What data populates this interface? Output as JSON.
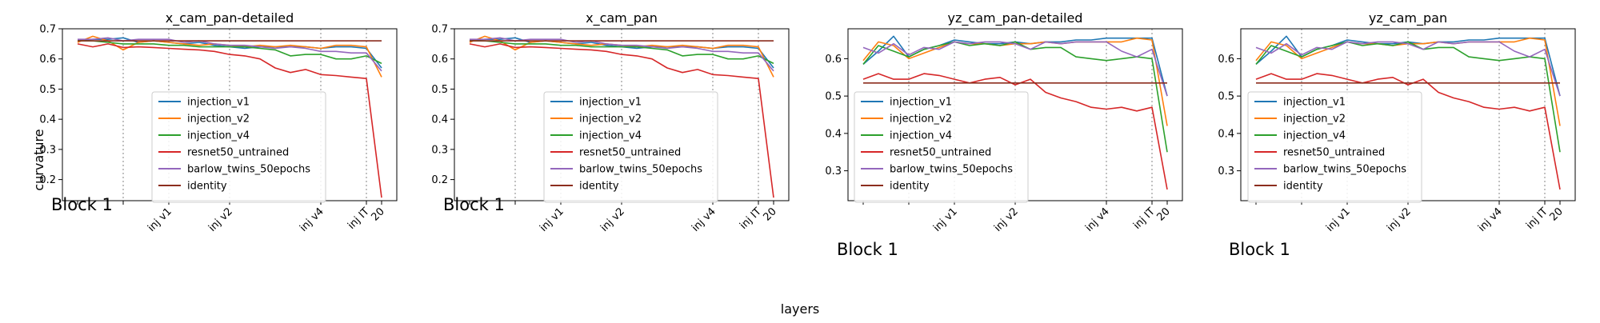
{
  "figure": {
    "xlabel": "layers",
    "ylabel": "curvature",
    "block_label": "Block 1"
  },
  "colors": {
    "injection_v1": "#1f77b4",
    "injection_v2": "#ff7f0e",
    "injection_v4": "#2ca02c",
    "resnet50_untrained": "#d62728",
    "barlow_twins_50epochs": "#9467bd",
    "identity": "#8c2d1e"
  },
  "chart_data": [
    {
      "type": "line",
      "title": "x_cam_pan-detailed",
      "ylim": [
        0.13,
        0.7
      ],
      "yticks": [
        0.2,
        0.3,
        0.4,
        0.5,
        0.6,
        0.7
      ],
      "xlim": [
        -1,
        21
      ],
      "x": [
        0,
        1,
        2,
        3,
        4,
        5,
        6,
        7,
        8,
        9,
        10,
        11,
        12,
        13,
        14,
        15,
        16,
        17,
        18,
        19,
        20
      ],
      "xticks": [
        {
          "x": 0,
          "label": ""
        },
        {
          "x": 3,
          "label": ""
        },
        {
          "x": 6,
          "label": "inj v1"
        },
        {
          "x": 10,
          "label": "inj v2"
        },
        {
          "x": 16,
          "label": "inj v4"
        },
        {
          "x": 19,
          "label": "inj IT"
        },
        {
          "x": 20,
          "label": "20"
        }
      ],
      "vlines": [
        3,
        6,
        10,
        16,
        19
      ],
      "series": [
        {
          "name": "injection_v1",
          "key": "injection_v1",
          "values": [
            0.66,
            0.665,
            0.665,
            0.67,
            0.655,
            0.66,
            0.655,
            0.65,
            0.655,
            0.645,
            0.64,
            0.635,
            0.64,
            0.64,
            0.64,
            0.64,
            0.635,
            0.64,
            0.64,
            0.635,
            0.57
          ]
        },
        {
          "name": "injection_v2",
          "key": "injection_v2",
          "values": [
            0.655,
            0.675,
            0.66,
            0.63,
            0.655,
            0.66,
            0.655,
            0.65,
            0.645,
            0.65,
            0.645,
            0.64,
            0.645,
            0.64,
            0.645,
            0.64,
            0.635,
            0.645,
            0.645,
            0.64,
            0.54
          ]
        },
        {
          "name": "injection_v4",
          "key": "injection_v4",
          "values": [
            0.66,
            0.66,
            0.655,
            0.65,
            0.65,
            0.65,
            0.645,
            0.645,
            0.64,
            0.64,
            0.64,
            0.64,
            0.635,
            0.63,
            0.61,
            0.615,
            0.615,
            0.6,
            0.6,
            0.61,
            0.585
          ]
        },
        {
          "name": "resnet50_untrained",
          "key": "resnet50_untrained",
          "values": [
            0.65,
            0.64,
            0.65,
            0.638,
            0.64,
            0.638,
            0.635,
            0.632,
            0.63,
            0.625,
            0.615,
            0.61,
            0.6,
            0.57,
            0.555,
            0.565,
            0.548,
            0.545,
            0.54,
            0.535,
            0.14
          ]
        },
        {
          "name": "barlow_twins_50epochs",
          "key": "barlow_twins_50epochs",
          "values": [
            0.665,
            0.665,
            0.67,
            0.66,
            0.665,
            0.665,
            0.665,
            0.655,
            0.66,
            0.65,
            0.645,
            0.645,
            0.64,
            0.635,
            0.64,
            0.635,
            0.625,
            0.625,
            0.62,
            0.62,
            0.56
          ]
        },
        {
          "name": "identity",
          "key": "identity",
          "values": [
            0.66,
            0.66,
            0.66,
            0.66,
            0.66,
            0.66,
            0.66,
            0.66,
            0.66,
            0.66,
            0.66,
            0.66,
            0.66,
            0.66,
            0.66,
            0.66,
            0.66,
            0.66,
            0.66,
            0.66,
            0.66
          ]
        }
      ]
    },
    {
      "type": "line",
      "title": "x_cam_pan",
      "ylim": [
        0.13,
        0.7
      ],
      "yticks": [
        0.2,
        0.3,
        0.4,
        0.5,
        0.6,
        0.7
      ],
      "xlim": [
        -1,
        21
      ],
      "x": [
        0,
        1,
        2,
        3,
        4,
        5,
        6,
        7,
        8,
        9,
        10,
        11,
        12,
        13,
        14,
        15,
        16,
        17,
        18,
        19,
        20
      ],
      "xticks": [
        {
          "x": 0,
          "label": ""
        },
        {
          "x": 3,
          "label": ""
        },
        {
          "x": 6,
          "label": "inj v1"
        },
        {
          "x": 10,
          "label": "inj v2"
        },
        {
          "x": 16,
          "label": "inj v4"
        },
        {
          "x": 19,
          "label": "inj IT"
        },
        {
          "x": 20,
          "label": "20"
        }
      ],
      "vlines": [
        3,
        6,
        10,
        16,
        19
      ],
      "series": [
        {
          "name": "injection_v1",
          "key": "injection_v1",
          "values": [
            0.66,
            0.665,
            0.665,
            0.67,
            0.655,
            0.66,
            0.655,
            0.65,
            0.655,
            0.645,
            0.64,
            0.635,
            0.64,
            0.64,
            0.64,
            0.64,
            0.635,
            0.64,
            0.64,
            0.635,
            0.57
          ]
        },
        {
          "name": "injection_v2",
          "key": "injection_v2",
          "values": [
            0.655,
            0.675,
            0.66,
            0.63,
            0.655,
            0.66,
            0.655,
            0.65,
            0.645,
            0.65,
            0.645,
            0.64,
            0.645,
            0.64,
            0.645,
            0.64,
            0.635,
            0.645,
            0.645,
            0.64,
            0.54
          ]
        },
        {
          "name": "injection_v4",
          "key": "injection_v4",
          "values": [
            0.66,
            0.66,
            0.655,
            0.65,
            0.65,
            0.65,
            0.645,
            0.645,
            0.64,
            0.64,
            0.64,
            0.64,
            0.635,
            0.63,
            0.61,
            0.615,
            0.615,
            0.6,
            0.6,
            0.61,
            0.585
          ]
        },
        {
          "name": "resnet50_untrained",
          "key": "resnet50_untrained",
          "values": [
            0.65,
            0.64,
            0.65,
            0.638,
            0.64,
            0.638,
            0.635,
            0.632,
            0.63,
            0.625,
            0.615,
            0.61,
            0.6,
            0.57,
            0.555,
            0.565,
            0.548,
            0.545,
            0.54,
            0.535,
            0.14
          ]
        },
        {
          "name": "barlow_twins_50epochs",
          "key": "barlow_twins_50epochs",
          "values": [
            0.665,
            0.665,
            0.67,
            0.66,
            0.665,
            0.665,
            0.665,
            0.655,
            0.66,
            0.65,
            0.645,
            0.645,
            0.64,
            0.635,
            0.64,
            0.635,
            0.625,
            0.625,
            0.62,
            0.62,
            0.56
          ]
        },
        {
          "name": "identity",
          "key": "identity",
          "values": [
            0.66,
            0.66,
            0.66,
            0.66,
            0.66,
            0.66,
            0.66,
            0.66,
            0.66,
            0.66,
            0.66,
            0.66,
            0.66,
            0.66,
            0.66,
            0.66,
            0.66,
            0.66,
            0.66,
            0.66,
            0.66
          ]
        }
      ]
    },
    {
      "type": "line",
      "title": "yz_cam_pan-detailed",
      "ylim": [
        0.22,
        0.68
      ],
      "yticks": [
        0.3,
        0.4,
        0.5,
        0.6
      ],
      "xlim": [
        -1,
        21
      ],
      "x": [
        0,
        1,
        2,
        3,
        4,
        5,
        6,
        7,
        8,
        9,
        10,
        11,
        12,
        13,
        14,
        15,
        16,
        17,
        18,
        19,
        20
      ],
      "xticks": [
        {
          "x": 0,
          "label": ""
        },
        {
          "x": 3,
          "label": ""
        },
        {
          "x": 6,
          "label": "inj v1"
        },
        {
          "x": 10,
          "label": "inj v2"
        },
        {
          "x": 16,
          "label": "inj v4"
        },
        {
          "x": 19,
          "label": "inj IT"
        },
        {
          "x": 20,
          "label": "20"
        }
      ],
      "vlines": [
        3,
        6,
        10,
        16,
        19
      ],
      "series": [
        {
          "name": "injection_v1",
          "key": "injection_v1",
          "values": [
            0.585,
            0.62,
            0.66,
            0.605,
            0.625,
            0.635,
            0.65,
            0.645,
            0.64,
            0.64,
            0.645,
            0.64,
            0.645,
            0.645,
            0.65,
            0.65,
            0.655,
            0.655,
            0.655,
            0.655,
            0.5
          ]
        },
        {
          "name": "injection_v2",
          "key": "injection_v2",
          "values": [
            0.595,
            0.645,
            0.635,
            0.6,
            0.615,
            0.63,
            0.645,
            0.64,
            0.64,
            0.635,
            0.64,
            0.64,
            0.645,
            0.64,
            0.645,
            0.645,
            0.645,
            0.645,
            0.655,
            0.65,
            0.42
          ]
        },
        {
          "name": "injection_v4",
          "key": "injection_v4",
          "values": [
            0.585,
            0.635,
            0.62,
            0.605,
            0.625,
            0.635,
            0.645,
            0.635,
            0.64,
            0.635,
            0.645,
            0.625,
            0.63,
            0.63,
            0.605,
            0.6,
            0.595,
            0.6,
            0.605,
            0.6,
            0.35
          ]
        },
        {
          "name": "resnet50_untrained",
          "key": "resnet50_untrained",
          "values": [
            0.545,
            0.56,
            0.545,
            0.545,
            0.56,
            0.555,
            0.545,
            0.535,
            0.545,
            0.55,
            0.53,
            0.545,
            0.51,
            0.495,
            0.485,
            0.47,
            0.465,
            0.47,
            0.46,
            0.47,
            0.25
          ]
        },
        {
          "name": "barlow_twins_50epochs",
          "key": "barlow_twins_50epochs",
          "values": [
            0.63,
            0.615,
            0.64,
            0.61,
            0.63,
            0.625,
            0.645,
            0.64,
            0.645,
            0.645,
            0.64,
            0.625,
            0.645,
            0.64,
            0.645,
            0.645,
            0.645,
            0.62,
            0.605,
            0.625,
            0.5
          ]
        },
        {
          "name": "identity",
          "key": "identity",
          "values": [
            0.535,
            0.535,
            0.535,
            0.535,
            0.535,
            0.535,
            0.535,
            0.535,
            0.535,
            0.535,
            0.535,
            0.535,
            0.535,
            0.535,
            0.535,
            0.535,
            0.535,
            0.535,
            0.535,
            0.535,
            0.535
          ]
        }
      ]
    },
    {
      "type": "line",
      "title": "yz_cam_pan",
      "ylim": [
        0.22,
        0.68
      ],
      "yticks": [
        0.3,
        0.4,
        0.5,
        0.6
      ],
      "xlim": [
        -1,
        21
      ],
      "x": [
        0,
        1,
        2,
        3,
        4,
        5,
        6,
        7,
        8,
        9,
        10,
        11,
        12,
        13,
        14,
        15,
        16,
        17,
        18,
        19,
        20
      ],
      "xticks": [
        {
          "x": 0,
          "label": ""
        },
        {
          "x": 3,
          "label": ""
        },
        {
          "x": 6,
          "label": "inj v1"
        },
        {
          "x": 10,
          "label": "inj v2"
        },
        {
          "x": 16,
          "label": "inj v4"
        },
        {
          "x": 19,
          "label": "inj IT"
        },
        {
          "x": 20,
          "label": "20"
        }
      ],
      "vlines": [
        3,
        6,
        10,
        16,
        19
      ],
      "series": [
        {
          "name": "injection_v1",
          "key": "injection_v1",
          "values": [
            0.585,
            0.62,
            0.66,
            0.605,
            0.625,
            0.635,
            0.65,
            0.645,
            0.64,
            0.64,
            0.645,
            0.64,
            0.645,
            0.645,
            0.65,
            0.65,
            0.655,
            0.655,
            0.655,
            0.655,
            0.5
          ]
        },
        {
          "name": "injection_v2",
          "key": "injection_v2",
          "values": [
            0.595,
            0.645,
            0.635,
            0.6,
            0.615,
            0.63,
            0.645,
            0.64,
            0.64,
            0.635,
            0.64,
            0.64,
            0.645,
            0.64,
            0.645,
            0.645,
            0.645,
            0.645,
            0.655,
            0.65,
            0.42
          ]
        },
        {
          "name": "injection_v4",
          "key": "injection_v4",
          "values": [
            0.585,
            0.635,
            0.62,
            0.605,
            0.625,
            0.635,
            0.645,
            0.635,
            0.64,
            0.635,
            0.645,
            0.625,
            0.63,
            0.63,
            0.605,
            0.6,
            0.595,
            0.6,
            0.605,
            0.6,
            0.35
          ]
        },
        {
          "name": "resnet50_untrained",
          "key": "resnet50_untrained",
          "values": [
            0.545,
            0.56,
            0.545,
            0.545,
            0.56,
            0.555,
            0.545,
            0.535,
            0.545,
            0.55,
            0.53,
            0.545,
            0.51,
            0.495,
            0.485,
            0.47,
            0.465,
            0.47,
            0.46,
            0.47,
            0.25
          ]
        },
        {
          "name": "barlow_twins_50epochs",
          "key": "barlow_twins_50epochs",
          "values": [
            0.63,
            0.615,
            0.64,
            0.61,
            0.63,
            0.625,
            0.645,
            0.64,
            0.645,
            0.645,
            0.64,
            0.625,
            0.645,
            0.64,
            0.645,
            0.645,
            0.645,
            0.62,
            0.605,
            0.625,
            0.5
          ]
        },
        {
          "name": "identity",
          "key": "identity",
          "values": [
            0.535,
            0.535,
            0.535,
            0.535,
            0.535,
            0.535,
            0.535,
            0.535,
            0.535,
            0.535,
            0.535,
            0.535,
            0.535,
            0.535,
            0.535,
            0.535,
            0.535,
            0.535,
            0.535,
            0.535,
            0.535
          ]
        }
      ]
    }
  ]
}
